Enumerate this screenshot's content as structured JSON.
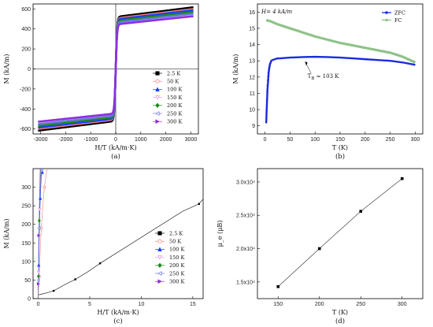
{
  "chart_data": [
    {
      "id": "a",
      "type": "line",
      "caption": "(a)",
      "xlabel": "H/T (kA/m·K)",
      "ylabel": "M (kA/m)",
      "xlim": [
        -3300,
        3300
      ],
      "ylim": [
        -650,
        650
      ],
      "xticks": [
        "-3000",
        "-2000",
        "-1000",
        "0",
        "1000",
        "2000",
        "3000"
      ],
      "yticks": [
        "-600",
        "-400",
        "-200",
        "0",
        "200",
        "400",
        "600"
      ],
      "legend_position": "bottom-right",
      "curve": "tanh-like hysteresis loop through origin, saturating near ±Ms",
      "series": [
        {
          "name": "2.5 K",
          "color": "#000000",
          "marker": "square-filled",
          "Ms": 520
        },
        {
          "name": "50 K",
          "color": "#f08080",
          "marker": "circle-open",
          "Ms": 505
        },
        {
          "name": "100 K",
          "color": "#1f3fff",
          "marker": "triangle-filled",
          "Ms": 495
        },
        {
          "name": "150 K",
          "color": "#e39ae0",
          "marker": "triangle-down-open",
          "Ms": 470
        },
        {
          "name": "200 K",
          "color": "#1a8a1a",
          "marker": "diamond-filled",
          "Ms": 480
        },
        {
          "name": "250 K",
          "color": "#6b7bd6",
          "marker": "triangle-left-open",
          "Ms": 465
        },
        {
          "name": "300 K",
          "color": "#8e2de2",
          "marker": "triangle-right-filled",
          "Ms": 445
        }
      ]
    },
    {
      "id": "b",
      "type": "line",
      "caption": "(b)",
      "xlabel": "T (K)",
      "ylabel": "M (kA/m)",
      "xlim": [
        -15,
        315
      ],
      "ylim": [
        8.5,
        16.5
      ],
      "xticks": [
        "0",
        "50",
        "100",
        "150",
        "200",
        "250",
        "300"
      ],
      "yticks": [
        "9",
        "10",
        "11",
        "12",
        "13",
        "14",
        "15",
        "16"
      ],
      "annotation_field": "H= 4 kA/m",
      "annotation_tb": "T",
      "annotation_tb_sub": "B",
      "annotation_tb_val": " ≈ 103 K",
      "legend_position": "top-right",
      "series": [
        {
          "name": "ZFC",
          "color": "#1a2bdc",
          "x": [
            2.5,
            5,
            7.5,
            10,
            12.5,
            15,
            20,
            25,
            30,
            50,
            75,
            100,
            125,
            150,
            175,
            200,
            225,
            250,
            275,
            300
          ],
          "y": [
            9.2,
            11.2,
            12.3,
            12.8,
            13.0,
            13.05,
            13.1,
            13.15,
            13.15,
            13.2,
            13.23,
            13.25,
            13.23,
            13.2,
            13.15,
            13.1,
            13.05,
            13.0,
            12.9,
            12.75
          ]
        },
        {
          "name": "FC",
          "color": "#8fc28a",
          "x": [
            2.5,
            10,
            25,
            50,
            75,
            100,
            125,
            150,
            175,
            200,
            225,
            250,
            275,
            300
          ],
          "y": [
            15.5,
            15.45,
            15.25,
            15.0,
            14.75,
            14.5,
            14.3,
            14.1,
            13.95,
            13.8,
            13.65,
            13.5,
            13.25,
            12.9
          ]
        }
      ]
    },
    {
      "id": "c",
      "type": "line",
      "caption": "(c)",
      "xlabel": "H/T (kA/m·K)",
      "ylabel": "M (kA/m)",
      "xlim": [
        -0.5,
        16
      ],
      "ylim": [
        0,
        350
      ],
      "xticks": [
        "0",
        "5",
        "10",
        "15"
      ],
      "xtick_values": [
        0,
        5,
        10,
        15
      ],
      "yticks": [
        "0",
        "50",
        "100",
        "150",
        "200",
        "250",
        "300"
      ],
      "legend_position": "bottom-right",
      "series": [
        {
          "name": "2.5 K",
          "color": "#000000",
          "marker": "square-filled",
          "x": [
            0,
            0.3,
            0.6,
            1.0,
            1.5,
            2.4,
            3.6,
            4.8,
            6.0,
            8.0,
            10.0,
            12.0,
            14.0,
            15.6,
            16.0
          ],
          "y": [
            10,
            12,
            14,
            17,
            21,
            35,
            52,
            72,
            95,
            130,
            165,
            200,
            235,
            255,
            268
          ]
        },
        {
          "name": "50 K",
          "color": "#f08080",
          "marker": "circle-open",
          "x": [
            0,
            0.1,
            0.2,
            0.3,
            0.45,
            0.6,
            0.8,
            1.0
          ],
          "y": [
            5,
            60,
            130,
            190,
            250,
            300,
            340,
            360
          ]
        },
        {
          "name": "100 K",
          "color": "#1f3fff",
          "marker": "triangle-filled",
          "x": [
            0,
            0.05,
            0.1,
            0.2,
            0.3,
            0.4,
            0.5
          ],
          "y": [
            5,
            90,
            170,
            270,
            330,
            340,
            360
          ]
        },
        {
          "name": "150 K",
          "color": "#e39ae0",
          "marker": "triangle-down-open",
          "x": [
            0,
            0.03,
            0.07,
            0.15,
            0.25,
            0.35
          ],
          "y": [
            5,
            70,
            150,
            240,
            320,
            360
          ]
        },
        {
          "name": "200 K",
          "color": "#1a8a1a",
          "marker": "diamond-filled",
          "x": [
            0,
            0.02,
            0.05,
            0.1,
            0.2,
            0.3
          ],
          "y": [
            5,
            60,
            130,
            210,
            300,
            360
          ]
        },
        {
          "name": "250 K",
          "color": "#6b7bd6",
          "marker": "triangle-left-open",
          "x": [
            0,
            0.02,
            0.04,
            0.08,
            0.15,
            0.25
          ],
          "y": [
            5,
            50,
            110,
            190,
            280,
            360
          ]
        },
        {
          "name": "300 K",
          "color": "#8e2de2",
          "marker": "triangle-right-filled",
          "x": [
            0,
            0.01,
            0.03,
            0.06,
            0.12,
            0.2
          ],
          "y": [
            5,
            40,
            100,
            170,
            260,
            360
          ]
        }
      ]
    },
    {
      "id": "d",
      "type": "line",
      "caption": "(d)",
      "xlabel": "T (K)",
      "ylabel": "μ_e (μB)",
      "xlim": [
        125,
        325
      ],
      "ylim": [
        12500.0,
        32000.0
      ],
      "xticks": [
        "150",
        "200",
        "250",
        "300"
      ],
      "xtick_values": [
        150,
        200,
        250,
        300
      ],
      "yticks": [
        "1.5x10⁴",
        "2.0x10⁴",
        "2.5x10⁴",
        "3.0x10⁴"
      ],
      "ytick_values": [
        15000,
        20000,
        25000,
        30000
      ],
      "series": [
        {
          "name": "",
          "color": "#000000",
          "marker": "square-filled",
          "x": [
            150,
            200,
            250,
            300
          ],
          "y": [
            14300,
            20000,
            25600,
            30500
          ]
        }
      ]
    }
  ]
}
